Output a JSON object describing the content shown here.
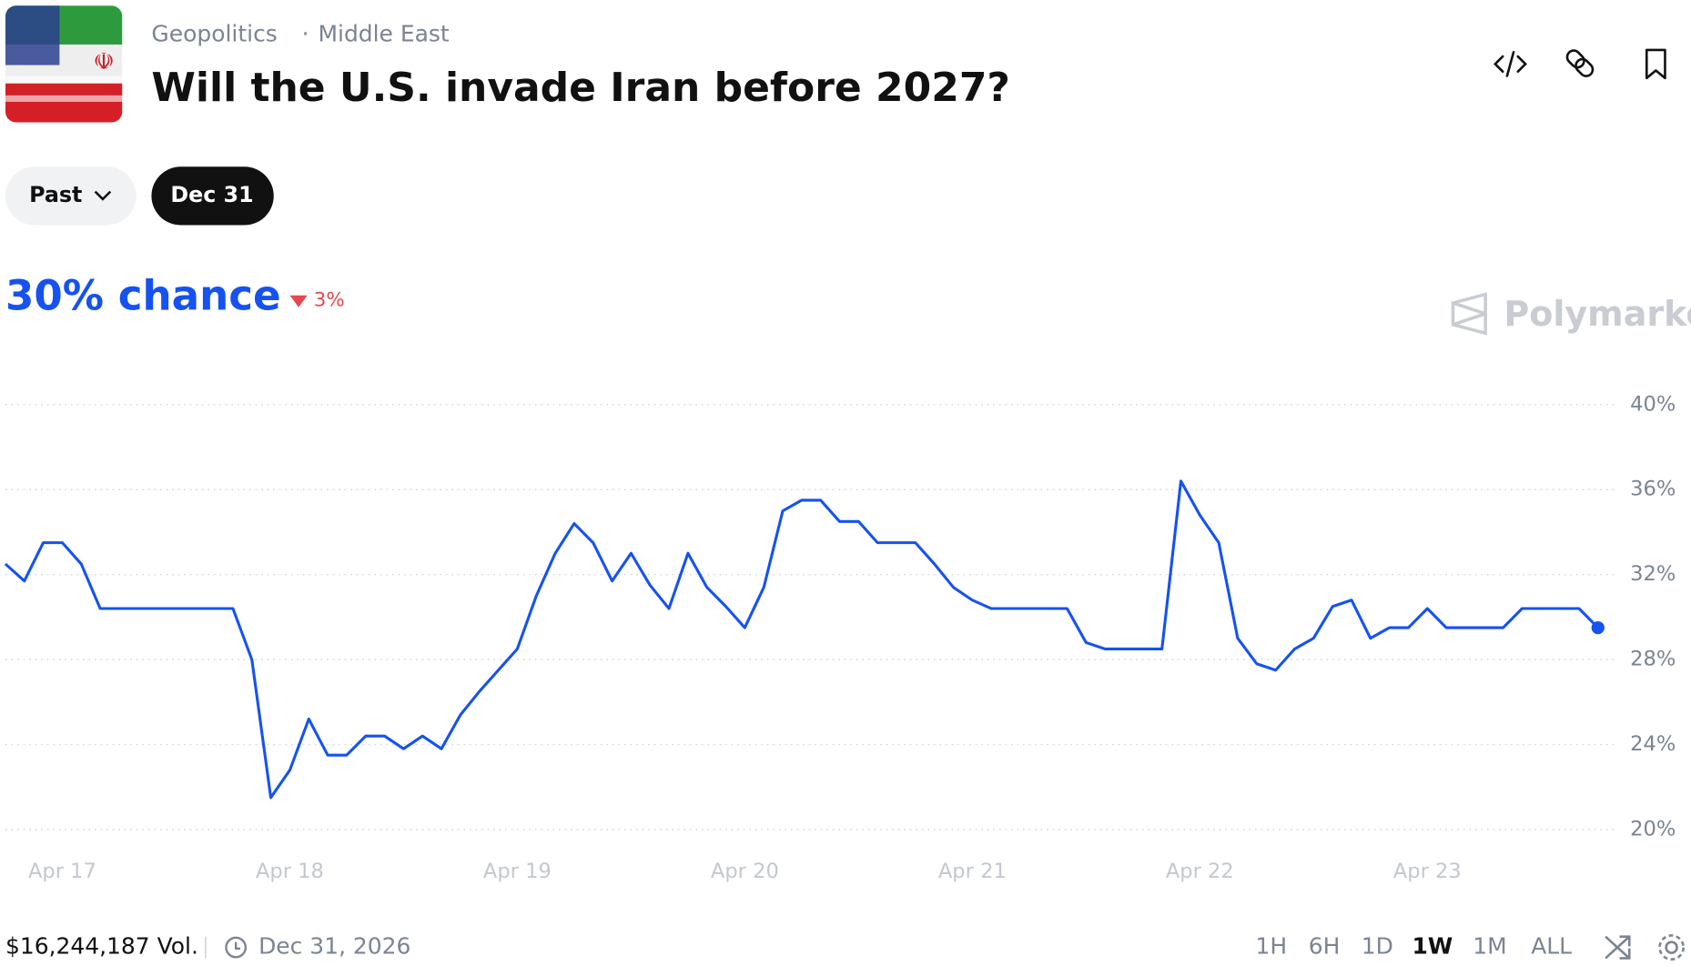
{
  "header": {
    "category": "Geopolitics",
    "separator": "·",
    "subcategory": "Middle East",
    "title": "Will the U.S. invade Iran before 2027?"
  },
  "outcome_tabs": [
    "Past",
    "Dec 31"
  ],
  "chance": {
    "label": "30% chance",
    "change": "3%"
  },
  "brand": "Polymarket",
  "footer": {
    "volume": "$16,244,187 Vol.",
    "end_date": "Dec 31, 2026",
    "ranges": [
      "1H",
      "6H",
      "1D",
      "1W",
      "1M",
      "ALL"
    ],
    "active_range": "1W"
  },
  "chart_data": {
    "type": "line",
    "series": [
      {
        "color": "#1652f0",
        "values": [
          32.5,
          31.7,
          33.5,
          33.5,
          32.5,
          30.4,
          30.4,
          30.4,
          30.4,
          30.4,
          30.4,
          30.4,
          30.4,
          28,
          21.5,
          22.8,
          25.2,
          23.5,
          23.5,
          24.4,
          24.4,
          23.8,
          24.4,
          23.8,
          25.4,
          26.5,
          27.5,
          28.5,
          31,
          33,
          34.4,
          33.5,
          31.7,
          33,
          31.5,
          30.4,
          33,
          31.4,
          30.5,
          29.5,
          31.4,
          35,
          35.5,
          35.5,
          34.5,
          34.5,
          33.5,
          33.5,
          33.5,
          32.5,
          31.4,
          30.8,
          30.4,
          30.4,
          30.4,
          30.4,
          30.4,
          28.8,
          28.5,
          28.5,
          28.5,
          28.5,
          36.4,
          34.8,
          33.5,
          29,
          27.8,
          27.5,
          28.5,
          29,
          30.5,
          30.8,
          29,
          29.5,
          29.5,
          30.4,
          29.5,
          29.5,
          29.5,
          29.5,
          30.4,
          30.4,
          30.4,
          30.4,
          29.5
        ]
      }
    ],
    "xlim": [
      0,
      84
    ],
    "xticks": [
      {
        "value": 3,
        "label": "Apr 17"
      },
      {
        "value": 15,
        "label": "Apr 18"
      },
      {
        "value": 27,
        "label": "Apr 19"
      },
      {
        "value": 39,
        "label": "Apr 20"
      },
      {
        "value": 51,
        "label": "Apr 21"
      },
      {
        "value": 63,
        "label": "Apr 22"
      },
      {
        "value": 75,
        "label": "Apr 23"
      }
    ],
    "ylim": [
      20,
      40
    ],
    "yticks": [
      {
        "value": 20,
        "label": "20%"
      },
      {
        "value": 24,
        "label": "24%"
      },
      {
        "value": 28,
        "label": "28%"
      },
      {
        "value": 32,
        "label": "32%"
      },
      {
        "value": 36,
        "label": "36%"
      },
      {
        "value": 40,
        "label": "40%"
      }
    ],
    "grid": true
  }
}
